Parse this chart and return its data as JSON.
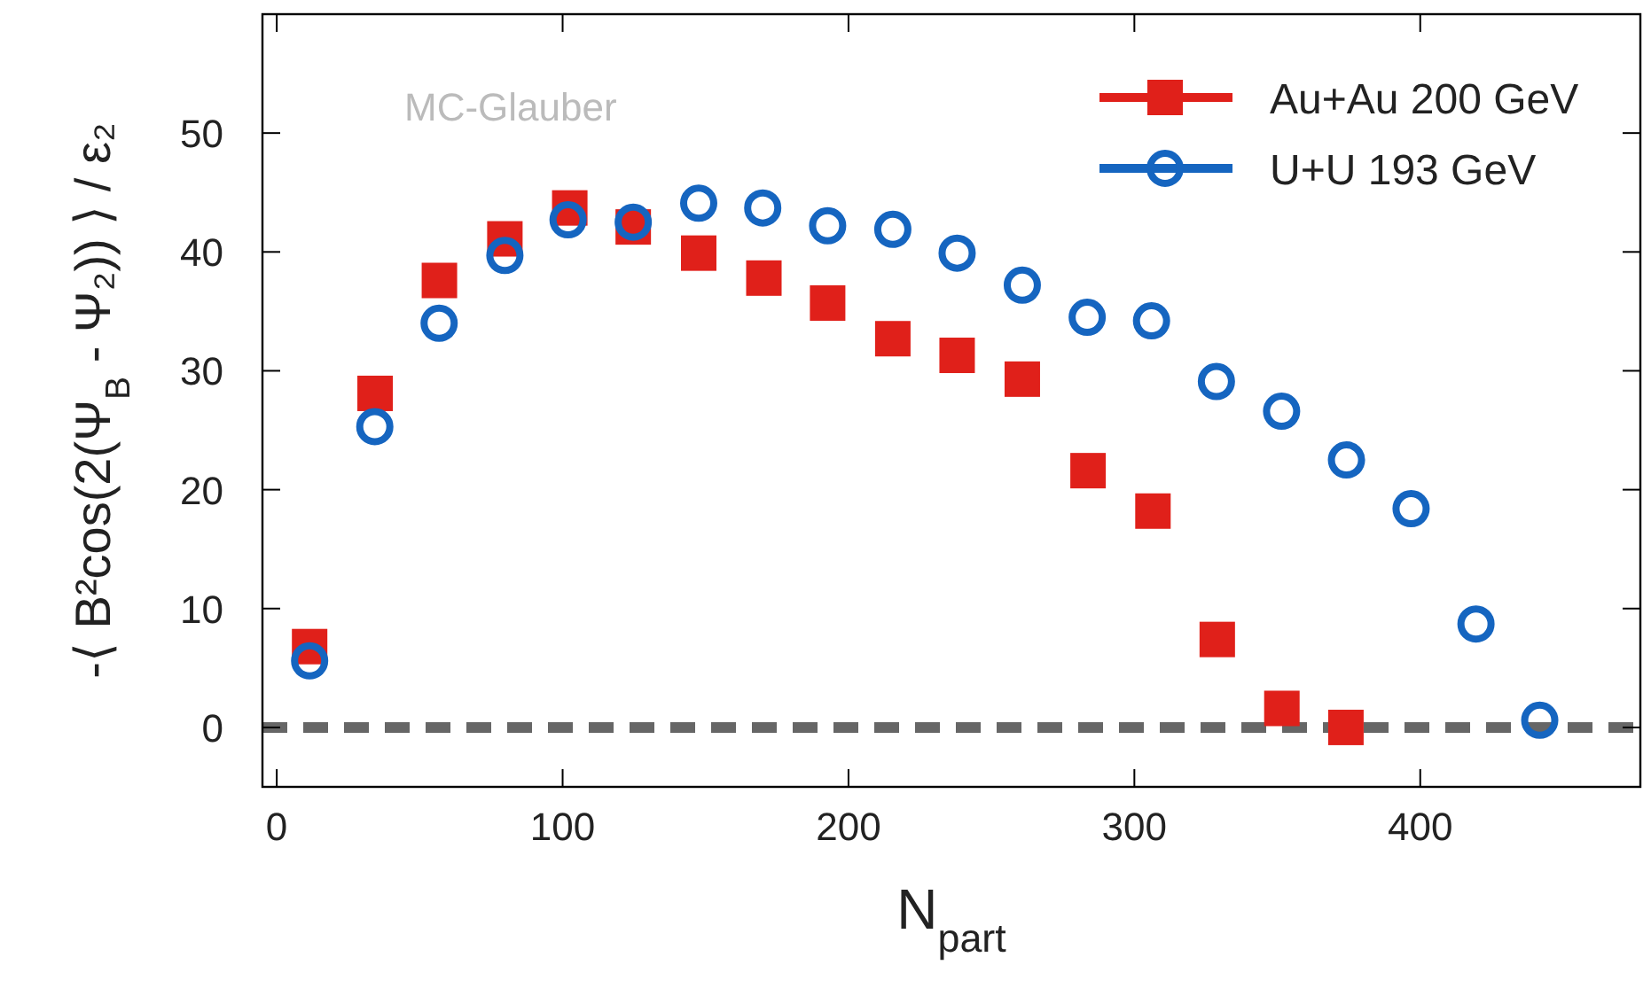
{
  "chart_data": {
    "type": "scatter",
    "xlabel": "N$_{part}$",
    "ylabel": "-⟨ B²cos(2(Ψ$_{B}$ - Ψ₂)) ⟩ / ε₂",
    "annotations": [
      "MC-Glauber"
    ],
    "xlim": [
      -5,
      477
    ],
    "xticks": [
      0,
      100,
      200,
      300,
      400
    ],
    "ylim": [
      -5,
      60
    ],
    "yticks": [
      0,
      10,
      20,
      30,
      40,
      50
    ],
    "grid": false,
    "legend": "top right",
    "ref_lines": [
      {
        "axis": "y",
        "value": 0,
        "color": "#666666",
        "line_style": "dashed"
      }
    ],
    "series": [
      {
        "name": "Au+Au 200 GeV",
        "color": "#e0201a",
        "marker": "square",
        "x": [
          11.5,
          34.4,
          56.9,
          79.8,
          102.5,
          124.7,
          147.6,
          170.4,
          192.7,
          215.5,
          238,
          260.8,
          283.8,
          306.5,
          329,
          351.6,
          374
        ],
        "values": [
          6.8,
          28.1,
          37.6,
          41.1,
          43.7,
          42.1,
          39.9,
          37.8,
          35.7,
          32.7,
          31.3,
          29.3,
          21.6,
          18.2,
          7.4,
          1.6,
          0.0
        ]
      },
      {
        "name": "U+U 193 GeV",
        "color": "#1565c0",
        "marker": "circle",
        "x": [
          11.5,
          34.3,
          56.8,
          79.8,
          101.9,
          124.7,
          147.6,
          170,
          192.7,
          215.5,
          238,
          260.8,
          283.5,
          306,
          328.7,
          351.5,
          374.2,
          396.8,
          419.5,
          441.8
        ],
        "values": [
          5.6,
          25.3,
          34.0,
          39.7,
          42.7,
          42.5,
          44.1,
          43.7,
          42.2,
          41.9,
          39.9,
          37.2,
          34.5,
          34.2,
          29.1,
          26.6,
          22.5,
          18.4,
          8.7,
          0.6
        ]
      }
    ]
  }
}
